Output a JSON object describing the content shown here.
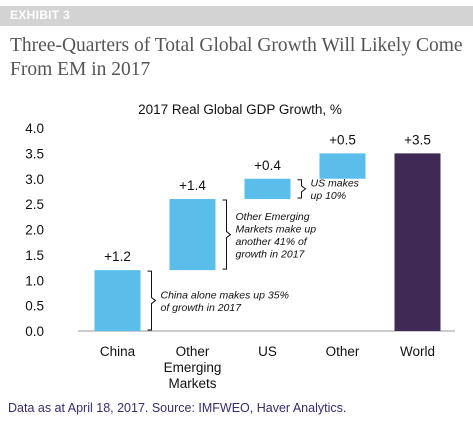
{
  "exhibit_label": "EXHIBIT 3",
  "headline_line1": "Three-Quarters of Total Global Growth Will Likely Come",
  "headline_line2": "From EM in 2017",
  "source": "Data as at April 18, 2017. Source: IMFWEO, Haver Analytics.",
  "colors": {
    "bar": "#5bbdea",
    "world_bar": "#3e2a55",
    "source_text": "#3b2a6e",
    "exhibit_bar": "#d3d3d3",
    "headline": "#555555"
  },
  "chart_data": {
    "type": "bar",
    "title": "2017 Real Global GDP Growth, %",
    "xlabel": "",
    "ylabel": "",
    "ylim": [
      0.0,
      4.0
    ],
    "yticks": [
      "0.0",
      "0.5",
      "1.0",
      "1.5",
      "2.0",
      "2.5",
      "3.0",
      "3.5",
      "4.0"
    ],
    "grid": false,
    "categories": [
      [
        "China"
      ],
      [
        "Other",
        "Emerging",
        "Markets"
      ],
      [
        "US"
      ],
      [
        "Other"
      ],
      [
        "World"
      ]
    ],
    "bars": [
      {
        "base": 0.0,
        "value": 1.2,
        "label": "+1.2",
        "kind": "increment"
      },
      {
        "base": 1.2,
        "value": 1.4,
        "label": "+1.4",
        "kind": "increment"
      },
      {
        "base": 2.6,
        "value": 0.4,
        "label": "+0.4",
        "kind": "increment"
      },
      {
        "base": 3.0,
        "value": 0.5,
        "label": "+0.5",
        "kind": "increment"
      },
      {
        "base": 0.0,
        "value": 3.5,
        "label": "+3.5",
        "kind": "total"
      }
    ],
    "annotations": [
      {
        "bar": 0,
        "lines": [
          "China alone makes up 35%",
          "of growth in 2017"
        ]
      },
      {
        "bar": 1,
        "lines": [
          "Other Emerging",
          "Markets make up",
          "another 41% of",
          "growth in 2017"
        ]
      },
      {
        "bar": 2,
        "lines": [
          "US makes",
          "up 10%"
        ]
      }
    ]
  }
}
